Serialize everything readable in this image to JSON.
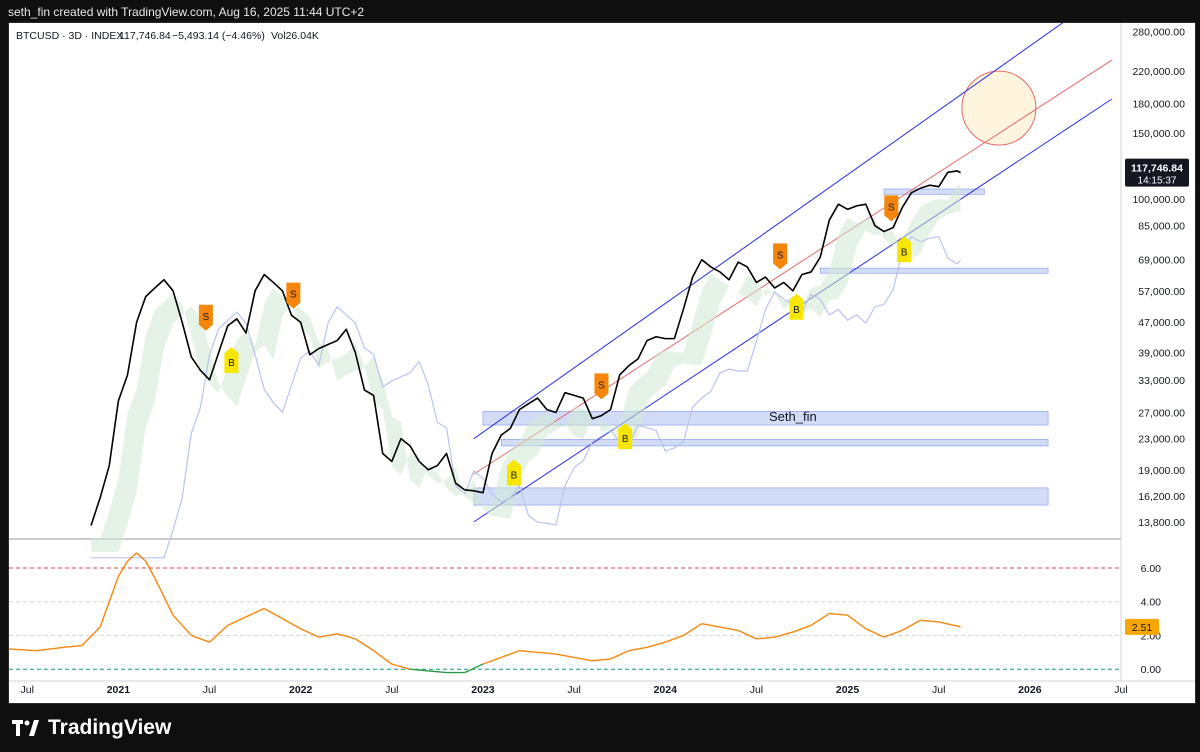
{
  "header": {
    "caption": "seth_fin created with TradingView.com, Aug 16, 2025 11:44 UTC+2"
  },
  "legend": {
    "symbol": "BTCUSD · 3D · INDEX",
    "price": "117,746.84",
    "change": "−5,493.14 (−4.46%)",
    "volume": "Vol26.04K"
  },
  "last_price": {
    "value": "117,746.84",
    "countdown": "14:15:37",
    "color": "#131722"
  },
  "oscillator": {
    "last_value": "2.51",
    "color": "#f7a600"
  },
  "annotation": {
    "text": "Seth_fin"
  },
  "footer": {
    "brand": "TradingView"
  },
  "colors": {
    "channel": "#2a2edb",
    "midline": "#e46a6a",
    "sell_marker": "#f5860b",
    "buy_marker": "#f9e600",
    "support_zone": "#aebff0"
  },
  "chart_data": [
    {
      "type": "line",
      "title": "BTCUSD · 3D · INDEX",
      "yscale": "log",
      "ylim": [
        12500,
        295000
      ],
      "y_ticks": [
        280000,
        220000,
        180000,
        150000,
        100000,
        85000,
        69000,
        57000,
        47000,
        39000,
        33000,
        27000,
        23000,
        19000,
        16200,
        13800
      ],
      "x_ticks": [
        "Jul",
        "2021",
        "Jul",
        "2022",
        "Jul",
        "2023",
        "Jul",
        "2024",
        "Jul",
        "2025",
        "Jul",
        "2026",
        "Jul"
      ],
      "x_tick_years": [
        2020.5,
        2021.0,
        2021.5,
        2022.0,
        2022.5,
        2023.0,
        2023.5,
        2024.0,
        2024.5,
        2025.0,
        2025.5,
        2026.0,
        2026.5
      ],
      "xlim": [
        2020.4,
        2026.5
      ],
      "series": [
        {
          "name": "BTCUSD price",
          "x": [
            2020.85,
            2020.9,
            2020.95,
            2021.0,
            2021.05,
            2021.1,
            2021.15,
            2021.2,
            2021.25,
            2021.3,
            2021.35,
            2021.4,
            2021.45,
            2021.5,
            2021.55,
            2021.6,
            2021.65,
            2021.7,
            2021.75,
            2021.8,
            2021.85,
            2021.9,
            2021.95,
            2022.0,
            2022.05,
            2022.1,
            2022.15,
            2022.2,
            2022.25,
            2022.3,
            2022.35,
            2022.4,
            2022.45,
            2022.5,
            2022.55,
            2022.6,
            2022.65,
            2022.7,
            2022.75,
            2022.8,
            2022.85,
            2022.9,
            2022.95,
            2023.0,
            2023.05,
            2023.1,
            2023.15,
            2023.2,
            2023.25,
            2023.3,
            2023.35,
            2023.4,
            2023.45,
            2023.5,
            2023.55,
            2023.6,
            2023.65,
            2023.7,
            2023.75,
            2023.8,
            2023.85,
            2023.9,
            2023.95,
            2024.0,
            2024.05,
            2024.1,
            2024.15,
            2024.2,
            2024.25,
            2024.3,
            2024.35,
            2024.4,
            2024.45,
            2024.5,
            2024.55,
            2024.6,
            2024.65,
            2024.7,
            2024.75,
            2024.8,
            2024.85,
            2024.9,
            2024.95,
            2025.0,
            2025.05,
            2025.1,
            2025.15,
            2025.2,
            2025.25,
            2025.3,
            2025.35,
            2025.4,
            2025.45,
            2025.5,
            2025.55,
            2025.6,
            2025.62
          ],
          "values": [
            13500,
            16000,
            19500,
            29000,
            34000,
            47000,
            55000,
            58000,
            61000,
            57000,
            47000,
            38000,
            35000,
            33000,
            39000,
            46000,
            48000,
            44000,
            57000,
            63000,
            60000,
            57000,
            49000,
            47000,
            38500,
            40000,
            41000,
            42000,
            45000,
            39000,
            31000,
            30000,
            21000,
            20000,
            23000,
            22000,
            20000,
            19000,
            19500,
            21000,
            17500,
            16800,
            16700,
            16500,
            21000,
            23500,
            24500,
            27500,
            28500,
            29500,
            27500,
            27000,
            30500,
            30000,
            29500,
            26000,
            26500,
            27500,
            34000,
            36000,
            37500,
            42000,
            43000,
            42500,
            42500,
            51000,
            62000,
            69000,
            66000,
            64000,
            61000,
            68000,
            66000,
            60000,
            62000,
            58000,
            60000,
            57000,
            63000,
            64000,
            70000,
            88000,
            97000,
            94000,
            96000,
            97000,
            85000,
            82000,
            84000,
            95000,
            104000,
            107000,
            109000,
            108000,
            118000,
            119000,
            117747
          ]
        },
        {
          "name": "Oscillator",
          "x": [
            2020.4,
            2020.55,
            2020.7,
            2020.8,
            2020.9,
            2021.0,
            2021.05,
            2021.1,
            2021.15,
            2021.2,
            2021.3,
            2021.4,
            2021.5,
            2021.6,
            2021.7,
            2021.8,
            2021.9,
            2022.0,
            2022.1,
            2022.2,
            2022.3,
            2022.4,
            2022.5,
            2022.6,
            2022.7,
            2022.8,
            2022.9,
            2023.0,
            2023.1,
            2023.2,
            2023.3,
            2023.4,
            2023.5,
            2023.6,
            2023.7,
            2023.8,
            2023.9,
            2024.0,
            2024.1,
            2024.2,
            2024.3,
            2024.4,
            2024.5,
            2024.6,
            2024.7,
            2024.8,
            2024.9,
            2025.0,
            2025.1,
            2025.2,
            2025.3,
            2025.4,
            2025.5,
            2025.62
          ],
          "values": [
            1.2,
            1.1,
            1.3,
            1.4,
            2.5,
            5.5,
            6.4,
            6.9,
            6.4,
            5.4,
            3.2,
            2.0,
            1.6,
            2.6,
            3.1,
            3.6,
            3.0,
            2.4,
            1.9,
            2.1,
            1.8,
            1.1,
            0.3,
            0.0,
            -0.1,
            -0.2,
            -0.2,
            0.3,
            0.7,
            1.1,
            1.0,
            0.9,
            0.7,
            0.5,
            0.6,
            1.1,
            1.3,
            1.6,
            2.0,
            2.7,
            2.5,
            2.3,
            1.8,
            1.9,
            2.2,
            2.6,
            3.3,
            3.2,
            2.4,
            1.9,
            2.3,
            2.9,
            2.8,
            2.51
          ]
        }
      ],
      "horizontal_levels": [
        280000,
        220000,
        180000,
        150000,
        100000,
        85000,
        69000,
        57000,
        47000,
        39000,
        33000,
        27000,
        23000,
        19000,
        16200,
        13800
      ],
      "osc_levels": [
        6.0,
        4.0,
        2.0,
        0.0
      ],
      "signals": [
        {
          "type": "S",
          "x": 2021.48,
          "y": 48000
        },
        {
          "type": "B",
          "x": 2021.62,
          "y": 37500
        },
        {
          "type": "S",
          "x": 2021.96,
          "y": 55000
        },
        {
          "type": "S",
          "x": 2023.65,
          "y": 31500
        },
        {
          "type": "B",
          "x": 2023.17,
          "y": 18800
        },
        {
          "type": "B",
          "x": 2023.78,
          "y": 23500
        },
        {
          "type": "S",
          "x": 2024.63,
          "y": 70000
        },
        {
          "type": "B",
          "x": 2024.72,
          "y": 52000
        },
        {
          "type": "S",
          "x": 2025.24,
          "y": 94000
        },
        {
          "type": "B",
          "x": 2025.31,
          "y": 74000
        }
      ],
      "oscillator_ylim": [
        -0.7,
        7.6
      ],
      "oscillator_ticks": [
        6.0,
        4.0,
        2.0,
        0.0
      ]
    }
  ]
}
